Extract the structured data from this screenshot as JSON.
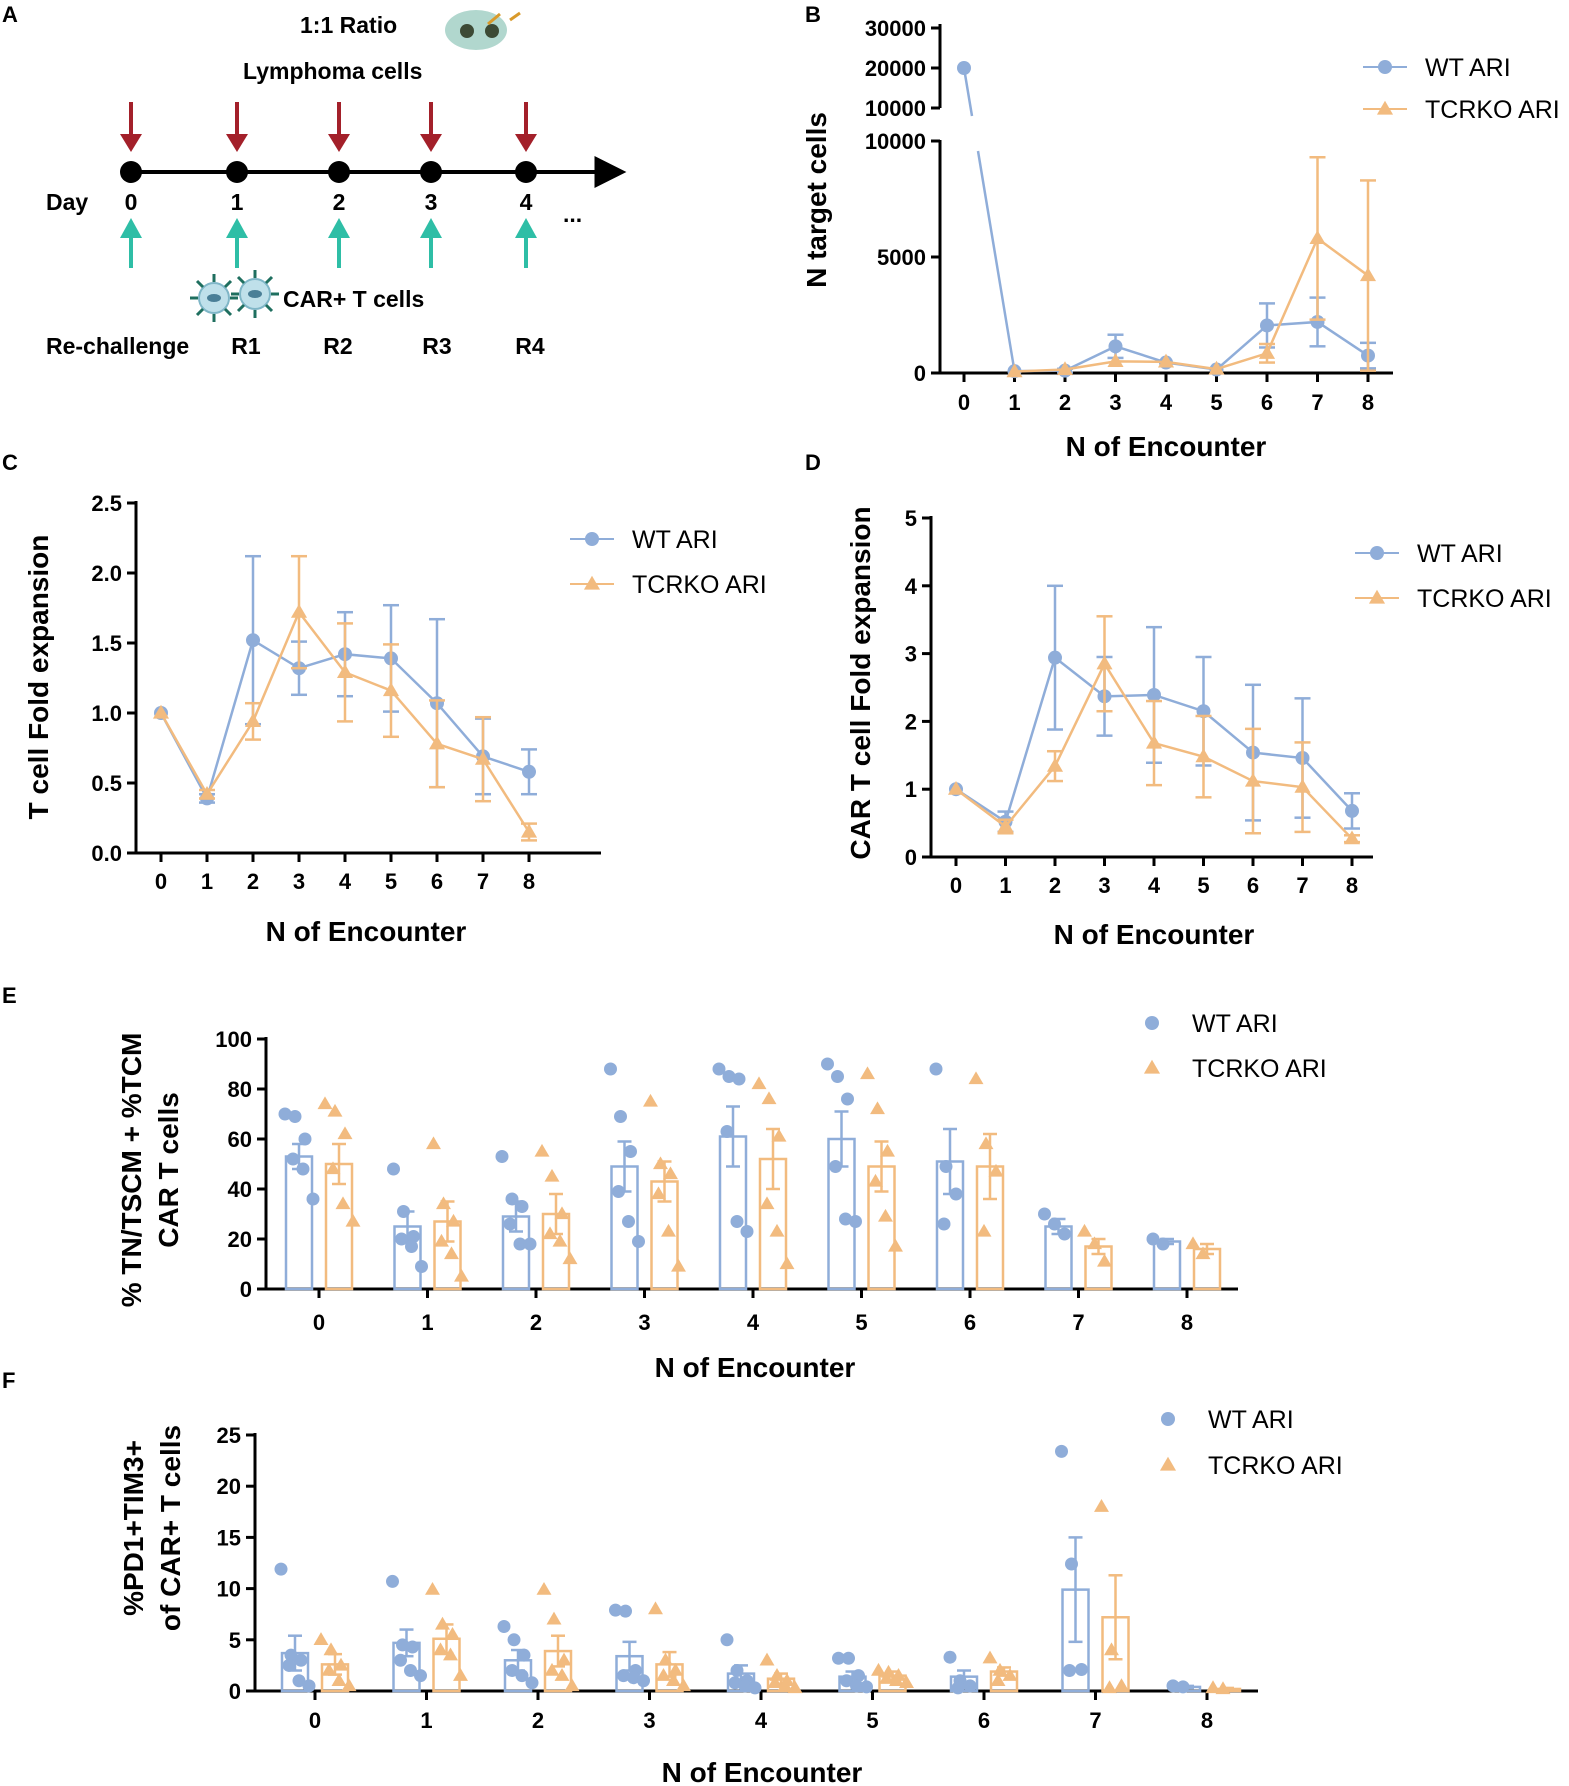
{
  "colors": {
    "wt": "#8fadd9",
    "tcrko": "#f2bb7f",
    "arrow_red": "#a3202a",
    "arrow_teal": "#2ebea6",
    "axis": "#000000"
  },
  "panelA": {
    "letter": "A",
    "ratio": "1:1 Ratio",
    "lymphoma": "Lymphoma cells",
    "day_label": "Day",
    "days": [
      "0",
      "1",
      "2",
      "3",
      "4"
    ],
    "ellipsis": "...",
    "car_label": "CAR+ T  cells",
    "rechallenge_label": "Re-challenge",
    "rounds": [
      "R1",
      "R2",
      "R3",
      "R4"
    ],
    "icons": [
      "lymphoma-cell-icon",
      "car-t-cell-icon",
      "arrow-down-icon",
      "arrow-up-icon"
    ]
  },
  "chart_data": [
    {
      "id": "B",
      "letter": "B",
      "type": "line",
      "ylabel": "N target cells",
      "xlabel": "N of Encounter",
      "x": [
        0,
        1,
        2,
        3,
        4,
        5,
        6,
        7,
        8
      ],
      "xticks": [
        "0",
        "1",
        "2",
        "3",
        "4",
        "5",
        "6",
        "7",
        "8"
      ],
      "yticks_low": [
        "0",
        "5000",
        "10000"
      ],
      "yticks_high": [
        "10000",
        "20000",
        "30000"
      ],
      "ylim_low": [
        0,
        10000
      ],
      "ylim_high": [
        10000,
        30000
      ],
      "legend": [
        "WT ARI",
        "TCRKO ARI"
      ],
      "series": [
        {
          "name": "WT ARI",
          "marker": "circle",
          "values": [
            20000,
            80,
            100,
            1150,
            450,
            150,
            2050,
            2200,
            750
          ],
          "err": [
            0,
            0,
            80,
            500,
            0,
            0,
            950,
            1050,
            550
          ]
        },
        {
          "name": "TCRKO ARI",
          "marker": "triangle",
          "values": [
            null,
            60,
            150,
            500,
            480,
            170,
            850,
            5800,
            4200
          ],
          "err": [
            0,
            0,
            0,
            0,
            0,
            0,
            400,
            3500,
            4100
          ]
        }
      ]
    },
    {
      "id": "C",
      "letter": "C",
      "type": "line",
      "ylabel": "T cell Fold expansion",
      "xlabel": "N of Encounter",
      "x": [
        0,
        1,
        2,
        3,
        4,
        5,
        6,
        7,
        8
      ],
      "xticks": [
        "0",
        "1",
        "2",
        "3",
        "4",
        "5",
        "6",
        "7",
        "8"
      ],
      "yticks": [
        "0.0",
        "0.5",
        "1.0",
        "1.5",
        "2.0",
        "2.5"
      ],
      "ylim": [
        0,
        2.5
      ],
      "legend": [
        "WT ARI",
        "TCRKO ARI"
      ],
      "series": [
        {
          "name": "WT ARI",
          "marker": "circle",
          "values": [
            1.0,
            0.39,
            1.52,
            1.32,
            1.42,
            1.39,
            1.07,
            0.69,
            0.58
          ],
          "err": [
            0,
            0.03,
            0.6,
            0.19,
            0.3,
            0.38,
            0.6,
            0.27,
            0.16
          ]
        },
        {
          "name": "TCRKO ARI",
          "marker": "triangle",
          "values": [
            1.0,
            0.42,
            0.94,
            1.72,
            1.29,
            1.16,
            0.78,
            0.67,
            0.15
          ],
          "err": [
            0,
            0.03,
            0.13,
            0.4,
            0.35,
            0.33,
            0.31,
            0.3,
            0.06
          ]
        }
      ]
    },
    {
      "id": "D",
      "letter": "D",
      "type": "line",
      "ylabel": "CAR T cell Fold expansion",
      "xlabel": "N of Encounter",
      "x": [
        0,
        1,
        2,
        3,
        4,
        5,
        6,
        7,
        8
      ],
      "xticks": [
        "0",
        "1",
        "2",
        "3",
        "4",
        "5",
        "6",
        "7",
        "8"
      ],
      "yticks": [
        "0",
        "1",
        "2",
        "3",
        "4",
        "5"
      ],
      "ylim": [
        0,
        5
      ],
      "legend": [
        "WT ARI",
        "TCRKO ARI"
      ],
      "series": [
        {
          "name": "WT ARI",
          "marker": "circle",
          "values": [
            1.0,
            0.52,
            2.94,
            2.37,
            2.39,
            2.15,
            1.54,
            1.46,
            0.68
          ],
          "err": [
            0,
            0.15,
            1.06,
            0.58,
            1.0,
            0.8,
            1.0,
            0.88,
            0.26
          ]
        },
        {
          "name": "TCRKO ARI",
          "marker": "triangle",
          "values": [
            1.0,
            0.45,
            1.34,
            2.85,
            1.68,
            1.48,
            1.12,
            1.03,
            0.27
          ],
          "err": [
            0,
            0.1,
            0.22,
            0.7,
            0.62,
            0.6,
            0.77,
            0.66,
            0.05
          ]
        }
      ]
    },
    {
      "id": "E",
      "letter": "E",
      "type": "bar",
      "ylabel_line1": "% TN/TSCM + %TCM",
      "ylabel_line2": "CAR T cells",
      "xlabel": "N of Encounter",
      "categories": [
        "0",
        "1",
        "2",
        "3",
        "4",
        "5",
        "6",
        "7",
        "8"
      ],
      "yticks": [
        "0",
        "20",
        "40",
        "60",
        "80",
        "100"
      ],
      "ylim": [
        0,
        100
      ],
      "legend": [
        "WT ARI",
        "TCRKO ARI"
      ],
      "series": [
        {
          "name": "WT ARI",
          "marker": "circle",
          "values": [
            53,
            25,
            29,
            49,
            61,
            60,
            51,
            25,
            19
          ],
          "err": [
            5,
            6,
            6,
            10,
            12,
            11,
            13,
            3,
            1
          ],
          "points": [
            [
              70,
              69,
              60,
              52,
              48,
              36
            ],
            [
              48,
              31,
              21,
              20,
              17,
              9
            ],
            [
              53,
              36,
              33,
              26,
              18,
              18
            ],
            [
              88,
              69,
              55,
              39,
              27,
              19
            ],
            [
              88,
              85,
              84,
              63,
              27,
              23
            ],
            [
              90,
              85,
              76,
              49,
              28,
              27
            ],
            [
              88,
              49,
              38,
              26
            ],
            [
              30,
              26,
              22
            ],
            [
              20,
              18
            ]
          ]
        },
        {
          "name": "TCRKO ARI",
          "marker": "triangle",
          "values": [
            50,
            27,
            30,
            43,
            52,
            49,
            49,
            17,
            16
          ],
          "err": [
            8,
            8,
            8,
            8,
            12,
            10,
            13,
            3,
            2
          ],
          "points": [
            [
              74,
              71,
              62,
              48,
              34,
              27
            ],
            [
              58,
              34,
              27,
              19,
              14,
              5
            ],
            [
              55,
              45,
              30,
              22,
              19,
              12
            ],
            [
              75,
              50,
              46,
              38,
              23,
              9
            ],
            [
              82,
              76,
              61,
              34,
              23,
              10
            ],
            [
              86,
              72,
              55,
              43,
              29,
              17
            ],
            [
              84,
              58,
              47,
              23
            ],
            [
              23,
              18,
              11
            ],
            [
              18,
              14
            ]
          ]
        }
      ]
    },
    {
      "id": "F",
      "letter": "F",
      "type": "bar",
      "ylabel_line1": "%PD1+TIM3+",
      "ylabel_line2": "of CAR+ T cells",
      "xlabel": "N of Encounter",
      "categories": [
        "0",
        "1",
        "2",
        "3",
        "4",
        "5",
        "6",
        "7",
        "8"
      ],
      "yticks": [
        "0",
        "5",
        "10",
        "15",
        "20",
        "25"
      ],
      "ylim": [
        0,
        25
      ],
      "legend": [
        "WT ARI",
        "TCRKO ARI"
      ],
      "series": [
        {
          "name": "WT ARI",
          "marker": "circle",
          "values": [
            3.7,
            4.7,
            3.0,
            3.4,
            1.7,
            1.4,
            1.4,
            9.9,
            0.4
          ],
          "err": [
            1.7,
            1.3,
            1.0,
            1.4,
            0.8,
            0.5,
            0.6,
            5.1,
            0.1
          ],
          "points": [
            [
              11.9,
              3.5,
              3.0,
              2.5,
              1.0,
              0.5
            ],
            [
              10.7,
              4.5,
              4.3,
              3.0,
              2.0,
              1.5
            ],
            [
              6.3,
              5.0,
              3.5,
              2.0,
              1.5,
              0.8
            ],
            [
              7.9,
              7.8,
              2.0,
              1.5,
              1.3,
              1.0
            ],
            [
              5.0,
              2.0,
              1.0,
              0.8,
              0.5,
              0.3
            ],
            [
              3.2,
              3.2,
              1.5,
              1.0,
              0.5,
              0.4
            ],
            [
              3.3,
              1.0,
              0.5,
              0.3
            ],
            [
              23.4,
              12.4,
              2.1,
              2.0
            ],
            [
              0.5,
              0.4
            ]
          ]
        },
        {
          "name": "TCRKO ARI",
          "marker": "triangle",
          "values": [
            2.6,
            5.1,
            3.9,
            2.6,
            1.2,
            1.5,
            1.9,
            7.2,
            0.2
          ],
          "err": [
            1.0,
            1.4,
            1.5,
            1.2,
            0.5,
            0.4,
            0.4,
            4.1,
            0.1
          ],
          "points": [
            [
              5.0,
              4.0,
              2.5,
              2.0,
              1.0,
              0.5
            ],
            [
              9.9,
              6.5,
              5.5,
              4.0,
              3.5,
              1.5
            ],
            [
              9.9,
              7.0,
              3.0,
              2.0,
              1.5,
              0.5
            ],
            [
              8.0,
              3.0,
              2.0,
              1.5,
              1.0,
              0.5
            ],
            [
              3.0,
              1.5,
              1.0,
              0.8,
              0.5,
              0.3
            ],
            [
              2.0,
              1.8,
              1.5,
              1.2,
              1.0,
              0.8
            ],
            [
              3.2,
              2.0,
              1.5,
              1.0
            ],
            [
              18.0,
              4.0,
              0.5,
              0.3
            ],
            [
              0.3,
              0.2
            ]
          ]
        }
      ]
    }
  ]
}
